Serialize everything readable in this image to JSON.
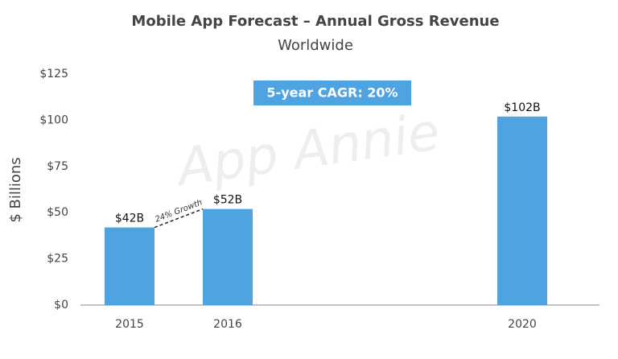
{
  "chart_data": {
    "type": "bar",
    "title": "Mobile App Forecast – Annual Gross Revenue",
    "subtitle": "Worldwide",
    "y_label": "$ Billions",
    "watermark": "App Annie",
    "annotations": [
      "5-year CAGR: 20%",
      "24% Growth"
    ],
    "categories": [
      "2015",
      "2016",
      null,
      null,
      "2020"
    ],
    "values": [
      42,
      52,
      null,
      null,
      102
    ],
    "value_labels": [
      "$42B",
      "$52B",
      null,
      null,
      "$102B"
    ],
    "color": "#4fa3e0",
    "ylim": [
      0,
      125
    ],
    "yticks": [
      {
        "value": 0,
        "label": "$0"
      },
      {
        "value": 25,
        "label": "$25"
      },
      {
        "value": 50,
        "label": "$50"
      },
      {
        "value": 75,
        "label": "$75"
      },
      {
        "value": 100,
        "label": "$100"
      },
      {
        "value": 125,
        "label": "$125"
      }
    ],
    "grid": false
  }
}
